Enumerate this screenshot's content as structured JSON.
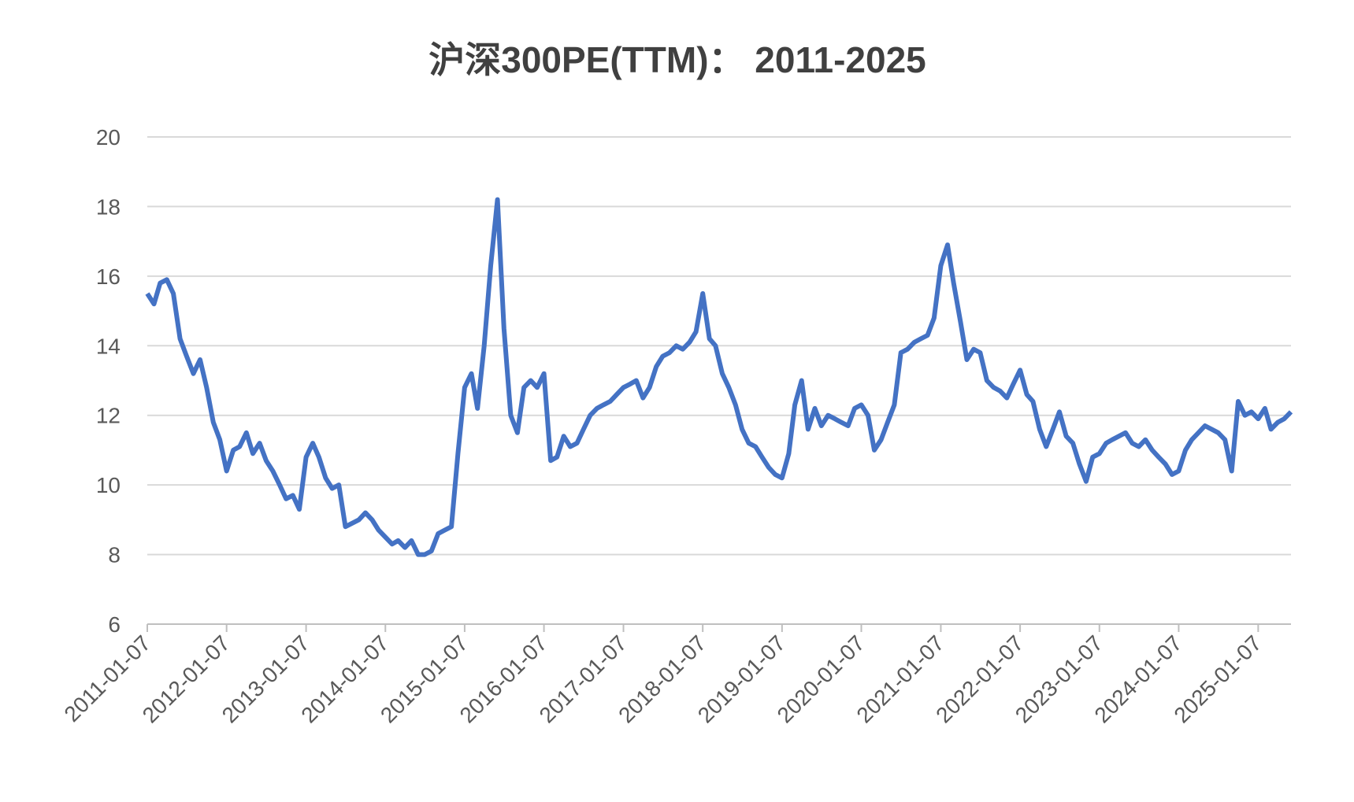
{
  "chart_data": {
    "type": "line",
    "title": "沪深300PE(TTM)： 2011-2025",
    "x": [
      "2011-01-07",
      "2011-02-07",
      "2011-03-07",
      "2011-04-07",
      "2011-05-07",
      "2011-06-07",
      "2011-07-07",
      "2011-08-07",
      "2011-09-07",
      "2011-10-07",
      "2011-11-07",
      "2011-12-07",
      "2012-01-07",
      "2012-02-07",
      "2012-03-07",
      "2012-04-07",
      "2012-05-07",
      "2012-06-07",
      "2012-07-07",
      "2012-08-07",
      "2012-09-07",
      "2012-10-07",
      "2012-11-07",
      "2012-12-07",
      "2013-01-07",
      "2013-02-07",
      "2013-03-07",
      "2013-04-07",
      "2013-05-07",
      "2013-06-07",
      "2013-07-07",
      "2013-08-07",
      "2013-09-07",
      "2013-10-07",
      "2013-11-07",
      "2013-12-07",
      "2014-01-07",
      "2014-02-07",
      "2014-03-07",
      "2014-04-07",
      "2014-05-07",
      "2014-06-07",
      "2014-07-07",
      "2014-08-07",
      "2014-09-07",
      "2014-10-07",
      "2014-11-07",
      "2014-12-07",
      "2015-01-07",
      "2015-02-07",
      "2015-03-07",
      "2015-04-07",
      "2015-05-07",
      "2015-06-07",
      "2015-07-07",
      "2015-08-07",
      "2015-09-07",
      "2015-10-07",
      "2015-11-07",
      "2015-12-07",
      "2016-01-07",
      "2016-02-07",
      "2016-03-07",
      "2016-04-07",
      "2016-05-07",
      "2016-06-07",
      "2016-07-07",
      "2016-08-07",
      "2016-09-07",
      "2016-10-07",
      "2016-11-07",
      "2016-12-07",
      "2017-01-07",
      "2017-02-07",
      "2017-03-07",
      "2017-04-07",
      "2017-05-07",
      "2017-06-07",
      "2017-07-07",
      "2017-08-07",
      "2017-09-07",
      "2017-10-07",
      "2017-11-07",
      "2017-12-07",
      "2018-01-07",
      "2018-02-07",
      "2018-03-07",
      "2018-04-07",
      "2018-05-07",
      "2018-06-07",
      "2018-07-07",
      "2018-08-07",
      "2018-09-07",
      "2018-10-07",
      "2018-11-07",
      "2018-12-07",
      "2019-01-07",
      "2019-02-07",
      "2019-03-07",
      "2019-04-07",
      "2019-05-07",
      "2019-06-07",
      "2019-07-07",
      "2019-08-07",
      "2019-09-07",
      "2019-10-07",
      "2019-11-07",
      "2019-12-07",
      "2020-01-07",
      "2020-02-07",
      "2020-03-07",
      "2020-04-07",
      "2020-05-07",
      "2020-06-07",
      "2020-07-07",
      "2020-08-07",
      "2020-09-07",
      "2020-10-07",
      "2020-11-07",
      "2020-12-07",
      "2021-01-07",
      "2021-02-07",
      "2021-03-07",
      "2021-04-07",
      "2021-05-07",
      "2021-06-07",
      "2021-07-07",
      "2021-08-07",
      "2021-09-07",
      "2021-10-07",
      "2021-11-07",
      "2021-12-07",
      "2022-01-07",
      "2022-02-07",
      "2022-03-07",
      "2022-04-07",
      "2022-05-07",
      "2022-06-07",
      "2022-07-07",
      "2022-08-07",
      "2022-09-07",
      "2022-10-07",
      "2022-11-07",
      "2022-12-07",
      "2023-01-07",
      "2023-02-07",
      "2023-03-07",
      "2023-04-07",
      "2023-05-07",
      "2023-06-07",
      "2023-07-07",
      "2023-08-07",
      "2023-09-07",
      "2023-10-07",
      "2023-11-07",
      "2023-12-07",
      "2024-01-07",
      "2024-02-07",
      "2024-03-07",
      "2024-04-07",
      "2024-05-07",
      "2024-06-07",
      "2024-07-07",
      "2024-08-07",
      "2024-09-07",
      "2024-10-07",
      "2024-11-07",
      "2024-12-07",
      "2025-01-07",
      "2025-02-07",
      "2025-03-07",
      "2025-04-07",
      "2025-05-07",
      "2025-06-07"
    ],
    "series": [
      {
        "color": "#4472c4",
        "values": [
          15.5,
          15.2,
          15.8,
          15.9,
          15.5,
          14.2,
          13.7,
          13.2,
          13.6,
          12.8,
          11.8,
          11.3,
          10.4,
          11.0,
          11.1,
          11.5,
          10.9,
          11.2,
          10.7,
          10.4,
          10.0,
          9.6,
          9.7,
          9.3,
          10.8,
          11.2,
          10.8,
          10.2,
          9.9,
          10.0,
          8.8,
          8.9,
          9.0,
          9.2,
          9.0,
          8.7,
          8.5,
          8.3,
          8.4,
          8.2,
          8.4,
          8.0,
          8.0,
          8.1,
          8.6,
          8.7,
          8.8,
          10.9,
          12.8,
          13.2,
          12.2,
          14.0,
          16.3,
          18.2,
          14.5,
          12.0,
          11.5,
          12.8,
          13.0,
          12.8,
          13.2,
          10.7,
          10.8,
          11.4,
          11.1,
          11.2,
          11.6,
          12.0,
          12.2,
          12.3,
          12.4,
          12.6,
          12.8,
          12.9,
          13.0,
          12.5,
          12.8,
          13.4,
          13.7,
          13.8,
          14.0,
          13.9,
          14.1,
          14.4,
          15.5,
          14.2,
          14.0,
          13.2,
          12.8,
          12.3,
          11.6,
          11.2,
          11.1,
          10.8,
          10.5,
          10.3,
          10.2,
          10.9,
          12.3,
          13.0,
          11.6,
          12.2,
          11.7,
          12.0,
          11.9,
          11.8,
          11.7,
          12.2,
          12.3,
          12.0,
          11.0,
          11.3,
          11.8,
          12.3,
          13.8,
          13.9,
          14.1,
          14.2,
          14.3,
          14.8,
          16.3,
          16.9,
          15.8,
          14.7,
          13.6,
          13.9,
          13.8,
          13.0,
          12.8,
          12.7,
          12.5,
          12.9,
          13.3,
          12.6,
          12.4,
          11.6,
          11.1,
          11.6,
          12.1,
          11.4,
          11.2,
          10.6,
          10.1,
          10.8,
          10.9,
          11.2,
          11.3,
          11.4,
          11.5,
          11.2,
          11.1,
          11.3,
          11.0,
          10.8,
          10.6,
          10.3,
          10.4,
          11.0,
          11.3,
          11.5,
          11.7,
          11.6,
          11.5,
          11.3,
          10.4,
          12.4,
          12.0,
          12.1,
          11.9,
          12.2,
          11.6,
          11.8,
          11.9,
          12.1
        ]
      }
    ],
    "xlim": [
      "2011-01-07",
      "2025-06-07"
    ],
    "xticks": [
      "2011-01-07",
      "2012-01-07",
      "2013-01-07",
      "2014-01-07",
      "2015-01-07",
      "2016-01-07",
      "2017-01-07",
      "2018-01-07",
      "2019-01-07",
      "2020-01-07",
      "2021-01-07",
      "2022-01-07",
      "2023-01-07",
      "2024-01-07",
      "2025-01-07"
    ],
    "ylim": [
      6,
      20
    ],
    "yticks": [
      6,
      8,
      10,
      12,
      14,
      16,
      18,
      20
    ],
    "grid": true
  }
}
